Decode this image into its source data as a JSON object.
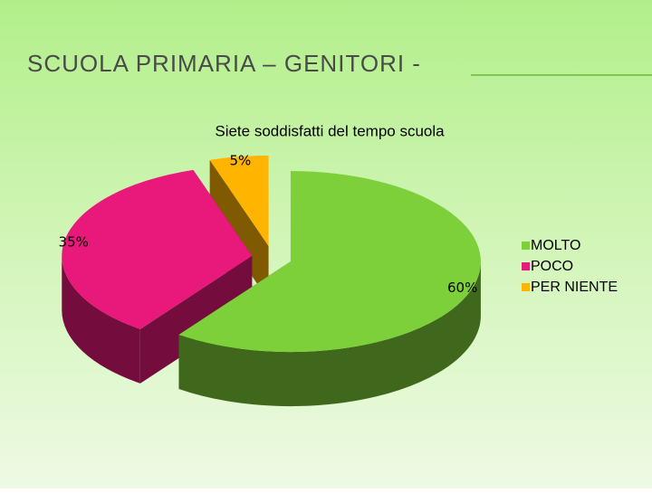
{
  "slide_title": "SCUOLA PRIMARIA – GENITORI -",
  "chart_data": {
    "type": "pie3d",
    "title": "Siete soddisfatti del tempo scuola",
    "categories": [
      "MOLTO",
      "POCO",
      "PER NIENTE"
    ],
    "values": [
      60,
      35,
      5
    ],
    "value_labels": [
      "60%",
      "35%",
      "5%"
    ],
    "colors": [
      "#7ed03a",
      "#e8197a",
      "#ffb400"
    ],
    "legend": "right"
  }
}
